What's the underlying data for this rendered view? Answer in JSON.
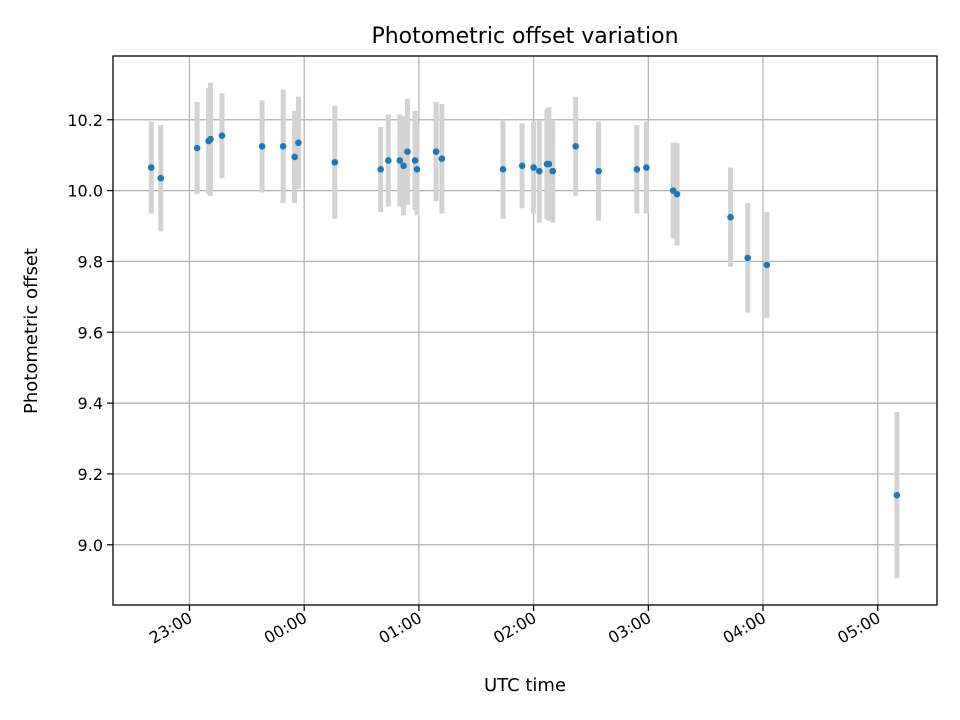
{
  "chart_data": {
    "type": "scatter",
    "title": "Photometric offset variation",
    "xlabel": "UTC time",
    "ylabel": "Photometric offset",
    "x_is_time": true,
    "xlim": [
      "22:20",
      "05:31"
    ],
    "ylim": [
      8.83,
      10.38
    ],
    "x_ticks": [
      "23:00",
      "00:00",
      "01:00",
      "02:00",
      "03:00",
      "04:00",
      "05:00"
    ],
    "y_ticks": [
      "9.0",
      "9.2",
      "9.4",
      "9.6",
      "9.8",
      "10.0",
      "10.2"
    ],
    "grid": true,
    "colors": {
      "point": "#1f77b4",
      "errorbar": "#d3d3d3",
      "grid": "#b0b0b0"
    },
    "series": [
      {
        "errorbar": true,
        "x": [
          "22:40",
          "22:45",
          "23:04",
          "23:10",
          "23:11",
          "23:17",
          "23:38",
          "23:49",
          "23:55",
          "23:57",
          "00:16",
          "00:40",
          "00:44",
          "00:50",
          "00:52",
          "00:54",
          "00:58",
          "00:59",
          "01:09",
          "01:12",
          "01:44",
          "01:54",
          "02:00",
          "02:03",
          "02:07",
          "02:08",
          "02:10",
          "02:22",
          "02:34",
          "02:54",
          "02:59",
          "03:13",
          "03:15",
          "03:43",
          "03:52",
          "04:02",
          "05:10"
        ],
        "y": [
          10.065,
          10.035,
          10.12,
          10.14,
          10.145,
          10.155,
          10.125,
          10.125,
          10.095,
          10.135,
          10.08,
          10.06,
          10.085,
          10.085,
          10.07,
          10.11,
          10.085,
          10.06,
          10.11,
          10.09,
          10.06,
          10.07,
          10.065,
          10.055,
          10.075,
          10.075,
          10.055,
          10.125,
          10.055,
          10.06,
          10.065,
          10.0,
          9.99,
          9.925,
          9.81,
          9.79,
          9.14
        ],
        "yerr": [
          0.13,
          0.15,
          0.13,
          0.15,
          0.16,
          0.12,
          0.13,
          0.16,
          0.13,
          0.13,
          0.16,
          0.12,
          0.13,
          0.13,
          0.14,
          0.15,
          0.14,
          0.13,
          0.14,
          0.155,
          0.14,
          0.12,
          0.13,
          0.145,
          0.155,
          0.16,
          0.145,
          0.14,
          0.14,
          0.125,
          0.13,
          0.135,
          0.145,
          0.14,
          0.155,
          0.15,
          0.235
        ]
      }
    ]
  }
}
